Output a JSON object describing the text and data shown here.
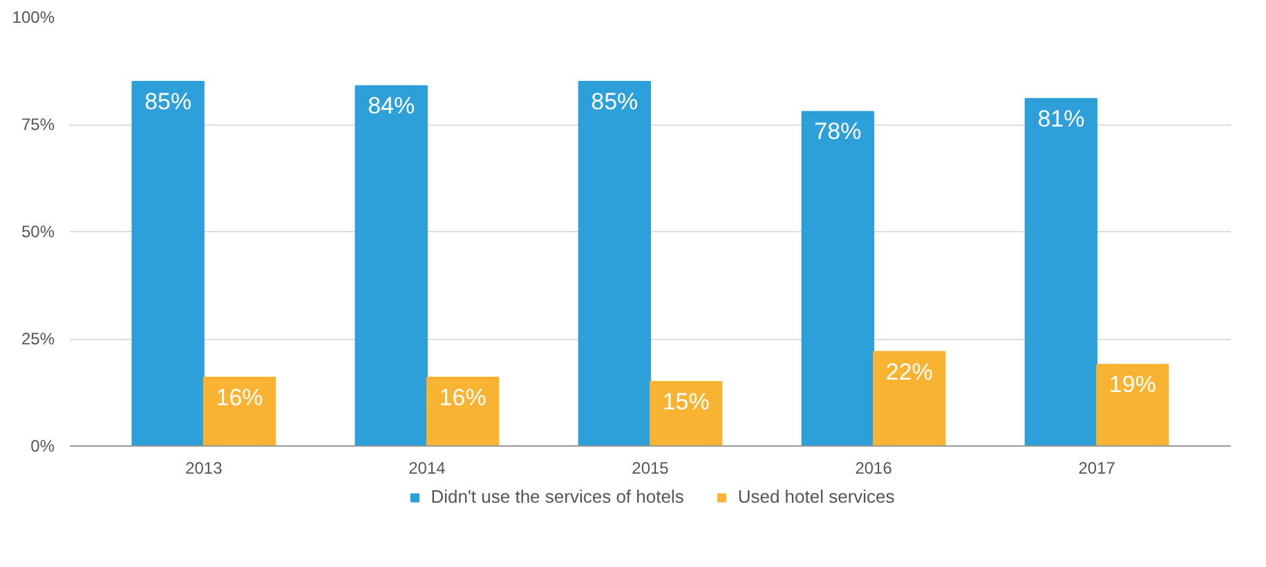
{
  "chart_data": {
    "type": "bar",
    "categories": [
      "2013",
      "2014",
      "2015",
      "2016",
      "2017"
    ],
    "series": [
      {
        "name": "Didn't use the services of hotels",
        "color": "#2d9fd9",
        "values": [
          85,
          84,
          85,
          78,
          81
        ],
        "value_labels": [
          "85%",
          "84%",
          "85%",
          "78%",
          "81%"
        ]
      },
      {
        "name": "Used hotel services",
        "color": "#f8b332",
        "values": [
          16,
          16,
          15,
          22,
          19
        ],
        "value_labels": [
          "16%",
          "16%",
          "15%",
          "22%",
          "19%"
        ]
      }
    ],
    "ylim": [
      0,
      100
    ],
    "yticks": [
      {
        "value": 0,
        "label": "0%"
      },
      {
        "value": 25,
        "label": "25%"
      },
      {
        "value": 50,
        "label": "50%"
      },
      {
        "value": 75,
        "label": "75%"
      },
      {
        "value": 100,
        "label": "100%"
      }
    ],
    "grid": "y",
    "legend": "bottom"
  }
}
